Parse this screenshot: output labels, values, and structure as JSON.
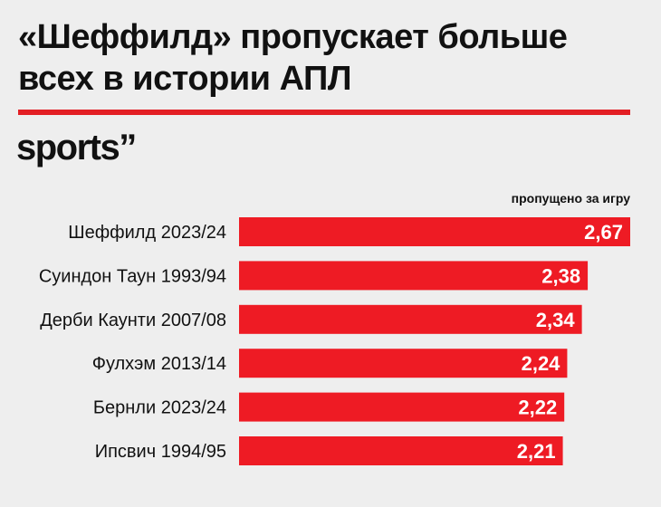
{
  "title": "«Шеффилд» пропускает больше всех в истории АПЛ",
  "brand": "sports”",
  "colors": {
    "bar": "#ee1b24",
    "rule": "#e31e24",
    "background": "#eeeeee"
  },
  "chart_data": {
    "type": "bar",
    "orientation": "horizontal",
    "value_caption": "пропущено за игру",
    "categories": [
      "Шеффилд 2023/24",
      "Суиндон Таун 1993/94",
      "Дерби Каунти 2007/08",
      "Фулхэм 2013/14",
      "Бернли 2023/24",
      "Ипсвич 1994/95"
    ],
    "values": [
      2.67,
      2.38,
      2.34,
      2.24,
      2.22,
      2.21
    ],
    "value_labels": [
      "2,67",
      "2,38",
      "2,34",
      "2,24",
      "2,22",
      "2,21"
    ],
    "xlim": [
      0,
      2.67
    ],
    "grid": false,
    "legend": "none"
  }
}
